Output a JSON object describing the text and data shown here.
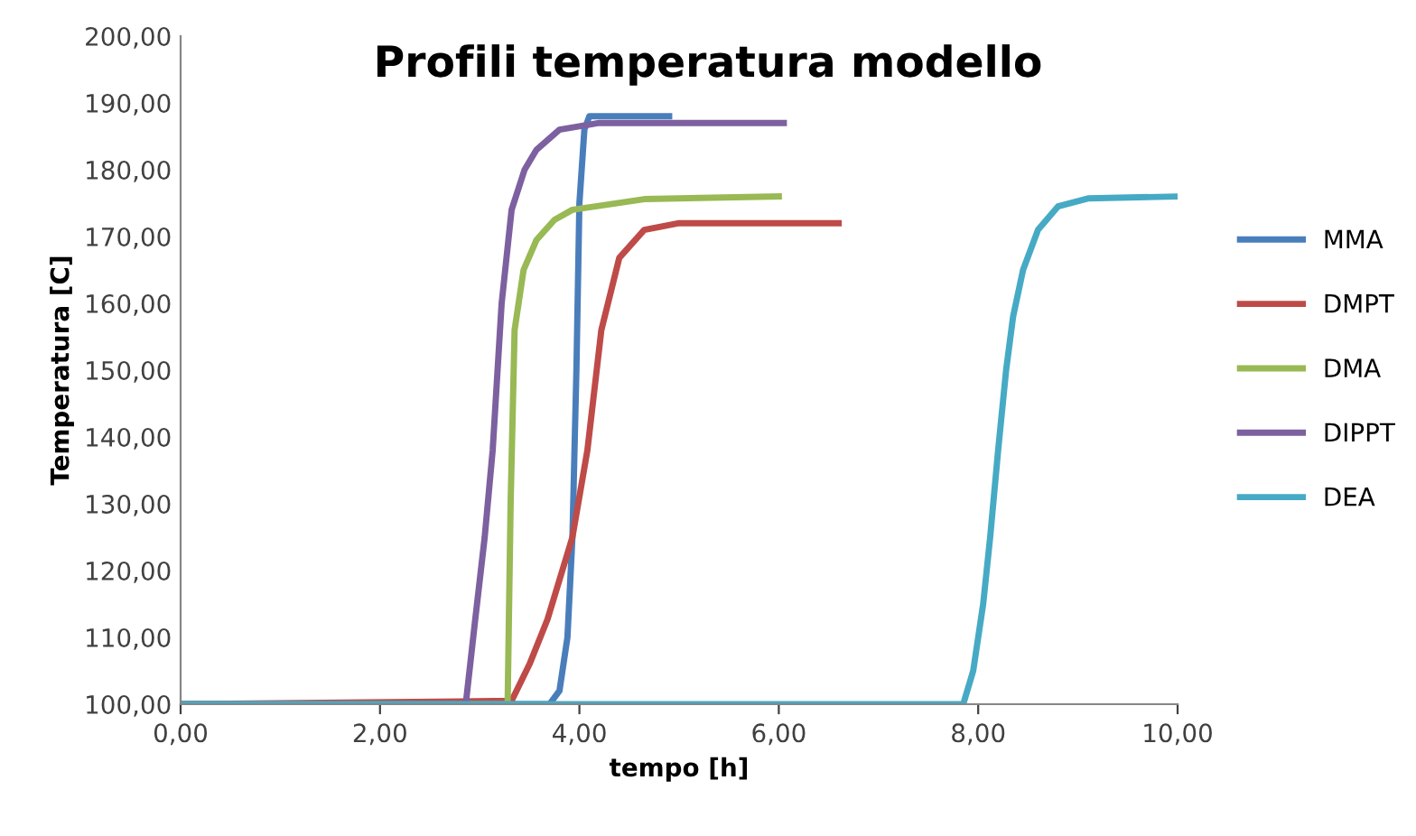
{
  "chart_data": {
    "type": "line",
    "title": "Profili temperatura modello",
    "xlabel": "tempo [h]",
    "ylabel": "Temperatura [C]",
    "xlim": [
      0,
      10
    ],
    "ylim": [
      100,
      200
    ],
    "xticks": [
      {
        "value": 0,
        "label": "0,00"
      },
      {
        "value": 2,
        "label": "2,00"
      },
      {
        "value": 4,
        "label": "4,00"
      },
      {
        "value": 6,
        "label": "6,00"
      },
      {
        "value": 8,
        "label": "8,00"
      },
      {
        "value": 10,
        "label": "10,00"
      }
    ],
    "yticks": [
      {
        "value": 100,
        "label": "100,00"
      },
      {
        "value": 110,
        "label": "110,00"
      },
      {
        "value": 120,
        "label": "120,00"
      },
      {
        "value": 130,
        "label": "130,00"
      },
      {
        "value": 140,
        "label": "140,00"
      },
      {
        "value": 150,
        "label": "150,00"
      },
      {
        "value": 160,
        "label": "160,00"
      },
      {
        "value": 170,
        "label": "170,00"
      },
      {
        "value": 180,
        "label": "180,00"
      },
      {
        "value": 190,
        "label": "190,00"
      },
      {
        "value": 200,
        "label": "200,00"
      }
    ],
    "grid": false,
    "legend": "right",
    "marker": "none",
    "line_style": "solid",
    "series": [
      {
        "name": "MMA",
        "color": "#4a7ebb",
        "x": [
          0,
          3.7,
          3.8,
          3.88,
          3.93,
          3.97,
          4.0,
          4.05,
          4.1,
          4.9
        ],
        "values": [
          100,
          100,
          102,
          110,
          125,
          150,
          175,
          186,
          188,
          188
        ]
      },
      {
        "name": "DMPT",
        "color": "#be4b48",
        "x": [
          0,
          3.32,
          3.5,
          3.68,
          3.93,
          4.08,
          4.22,
          4.4,
          4.65,
          5.0,
          6.6
        ],
        "values": [
          100,
          100.5,
          106,
          112.7,
          125,
          138,
          156,
          166.8,
          171,
          172,
          172
        ]
      },
      {
        "name": "DMA",
        "color": "#98b954",
        "x": [
          0,
          3.28,
          3.31,
          3.35,
          3.44,
          3.57,
          3.75,
          3.93,
          4.65,
          6.0
        ],
        "values": [
          100,
          100,
          130,
          156,
          165,
          169.5,
          172.5,
          174,
          175.6,
          176
        ]
      },
      {
        "name": "DIPPT",
        "color": "#7d60a0",
        "x": [
          0,
          2.86,
          2.95,
          3.05,
          3.13,
          3.22,
          3.32,
          3.45,
          3.57,
          3.8,
          4.2,
          6.05
        ],
        "values": [
          100,
          100,
          112,
          125,
          138,
          160,
          174,
          180,
          183,
          186,
          187,
          187
        ]
      },
      {
        "name": "DEA",
        "color": "#46aac5",
        "x": [
          0,
          7.85,
          7.95,
          8.05,
          8.12,
          8.2,
          8.28,
          8.35,
          8.45,
          8.6,
          8.8,
          9.1,
          10
        ],
        "values": [
          100,
          100,
          105,
          115,
          125,
          138,
          150,
          158,
          165,
          171,
          174.5,
          175.7,
          176
        ]
      }
    ]
  }
}
